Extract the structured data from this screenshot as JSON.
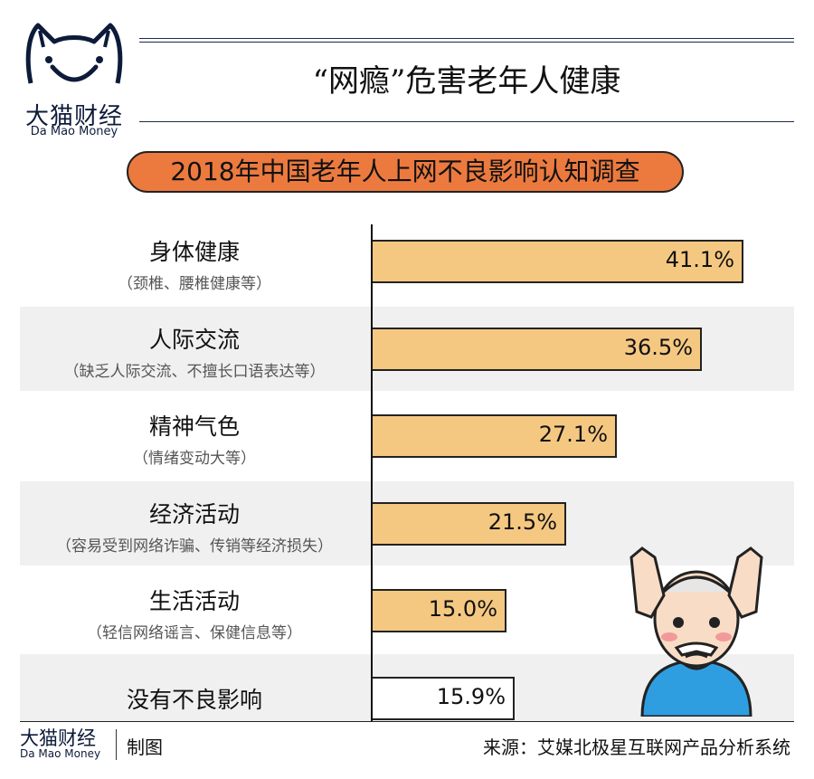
{
  "brand": {
    "name_cn": "大猫财经",
    "name_en": "Da Mao Money"
  },
  "header": {
    "title": "“网瘾”危害老年人健康"
  },
  "chart_data": {
    "type": "bar",
    "orientation": "horizontal",
    "title": "2018年中国老年人上网不良影响认知调查",
    "categories": [
      "身体健康",
      "人际交流",
      "精神气色",
      "经济活动",
      "生活活动",
      "没有不良影响"
    ],
    "subtitles": [
      "（颈椎、腰椎健康等）",
      "（缺乏人际交流、不擅长口语表达等）",
      "（情绪变动大等）",
      "（容易受到网络诈骗、传销等经济损失）",
      "（轻信网络谣言、保健信息等）",
      ""
    ],
    "values": [
      41.1,
      36.5,
      27.1,
      21.5,
      15.0,
      15.9
    ],
    "value_labels": [
      "41.1%",
      "36.5%",
      "27.1%",
      "21.5%",
      "15.0%",
      "15.9%"
    ],
    "unit": "%",
    "bar_colors": [
      "#f5c882",
      "#f5c882",
      "#f5c882",
      "#f5c882",
      "#f5c882",
      "#ffffff"
    ],
    "grid": false,
    "xlim": [
      0,
      41.1
    ]
  },
  "footer": {
    "made": "制图",
    "source": "来源：艾媒北极星互联网产品分析系统"
  }
}
